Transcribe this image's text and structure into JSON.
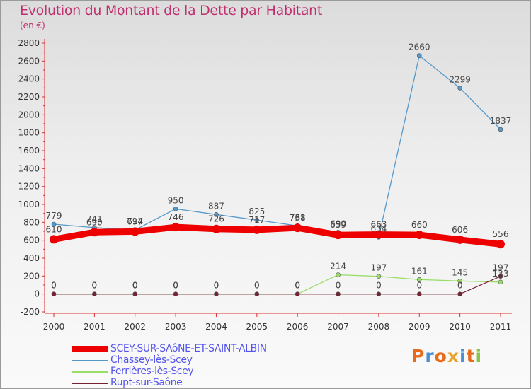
{
  "title": "Evolution du Montant de la Dette par Habitant",
  "unit": "(en €)",
  "logo": {
    "text": "Proxiti",
    "letter_colors": [
      "#e86b1a",
      "#4a8fd4",
      "#e86b1a",
      "#e8a12a",
      "#4a8fd4",
      "#e86b1a",
      "#8bc34a"
    ]
  },
  "chart_data": {
    "type": "line",
    "x": [
      "2000",
      "2001",
      "2002",
      "2003",
      "2004",
      "2005",
      "2006",
      "2007",
      "2008",
      "2009",
      "2010",
      "2011"
    ],
    "ylim": [
      -200,
      2800
    ],
    "yticks": [
      -200,
      0,
      200,
      400,
      600,
      800,
      1000,
      1200,
      1400,
      1600,
      1800,
      2000,
      2200,
      2400,
      2600,
      2800
    ],
    "grid": false,
    "legend_position": "bottom-left",
    "series": [
      {
        "name": "SCEY-SUR-SAôNE-ET-SAINT-ALBIN",
        "color": "#ee0000",
        "values": [
          610,
          690,
          697,
          746,
          726,
          717,
          738,
          659,
          663,
          660,
          606,
          556
        ],
        "labels": [
          "610",
          "690",
          "697",
          "746",
          "726",
          "717",
          "738",
          "659",
          "663",
          "660",
          "606",
          "556"
        ]
      },
      {
        "name": "Chassey-lès-Scey",
        "color": "#5599cc",
        "values": [
          779,
          741,
          714,
          950,
          887,
          825,
          761,
          690,
          634,
          2660,
          2299,
          1837
        ],
        "labels": [
          "779",
          "741",
          "714",
          "950",
          "887",
          "825",
          "761",
          "690",
          "634",
          "2660",
          "2299",
          "1837"
        ]
      },
      {
        "name": "Ferrières-lès-Scey",
        "color": "#99dd66",
        "values": [
          0,
          0,
          0,
          0,
          0,
          0,
          0,
          214,
          197,
          161,
          145,
          133
        ],
        "labels": [
          "0",
          "0",
          "0",
          "0",
          "0",
          "0",
          "0",
          "214",
          "197",
          "161",
          "145",
          "133"
        ]
      },
      {
        "name": "Rupt-sur-Saône",
        "color": "#772233",
        "values": [
          0,
          0,
          0,
          0,
          0,
          0,
          0,
          0,
          0,
          0,
          0,
          197
        ],
        "labels": [
          "0",
          "0",
          "0",
          "0",
          "0",
          "0",
          "0",
          "0",
          "0",
          "0",
          "0",
          "197"
        ]
      }
    ]
  }
}
